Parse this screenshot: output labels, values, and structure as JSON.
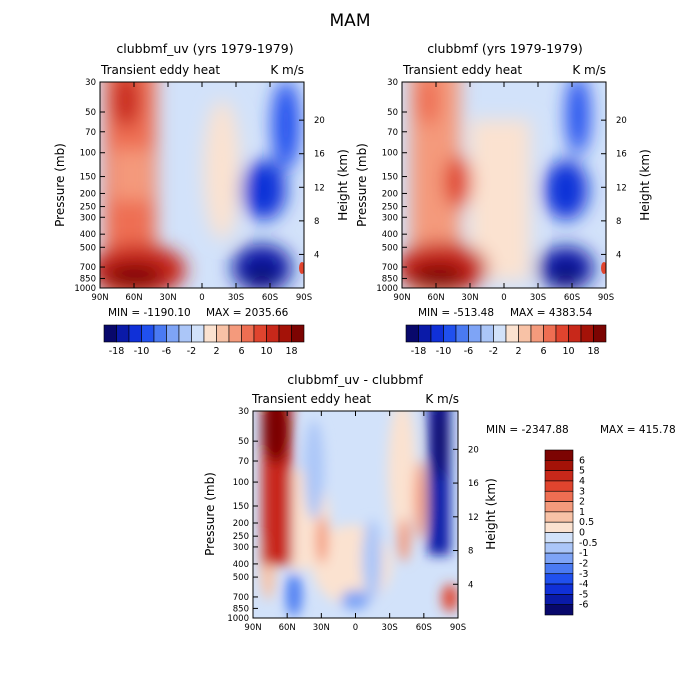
{
  "figure_title": "MAM",
  "chart_data": [
    {
      "type": "heatmap",
      "title": "clubbmf_uv (yrs 1979-1979)",
      "subtitle_left": "Transient eddy heat",
      "subtitle_right": "K m/s",
      "ylabel": "Pressure (mb)",
      "ylabel_right": "Height (km)",
      "x_ticks": [
        "90N",
        "60N",
        "30N",
        "0",
        "30S",
        "60S",
        "90S"
      ],
      "y_ticks": [
        "30",
        "50",
        "70",
        "100",
        "150",
        "200",
        "250",
        "300",
        "400",
        "500",
        "700",
        "850",
        "1000"
      ],
      "y2_ticks": [
        "20",
        "16",
        "12",
        "8",
        "4"
      ],
      "min_label": "MIN = -1190.10",
      "max_label": "MAX = 2035.66",
      "colorbar_labels": [
        "-18",
        "-10",
        "-6",
        "-2",
        "2",
        "6",
        "10",
        "18"
      ],
      "colorbar_levels": [
        -18,
        -14,
        -10,
        -8,
        -6,
        -4,
        -2,
        -1,
        1,
        2,
        4,
        6,
        8,
        10,
        14,
        18
      ],
      "colorbar_orientation": "horizontal"
    },
    {
      "type": "heatmap",
      "title": "clubbmf (yrs 1979-1979)",
      "subtitle_left": "Transient eddy heat",
      "subtitle_right": "K m/s",
      "ylabel": "Pressure (mb)",
      "ylabel_right": "Height (km)",
      "x_ticks": [
        "90N",
        "60N",
        "30N",
        "0",
        "30S",
        "60S",
        "90S"
      ],
      "y_ticks": [
        "30",
        "50",
        "70",
        "100",
        "150",
        "200",
        "250",
        "300",
        "400",
        "500",
        "700",
        "850",
        "1000"
      ],
      "y2_ticks": [
        "20",
        "16",
        "12",
        "8",
        "4"
      ],
      "min_label": "MIN = -513.48",
      "max_label": "MAX = 4383.54",
      "colorbar_labels": [
        "-18",
        "-10",
        "-6",
        "-2",
        "2",
        "6",
        "10",
        "18"
      ],
      "colorbar_levels": [
        -18,
        -14,
        -10,
        -8,
        -6,
        -4,
        -2,
        -1,
        1,
        2,
        4,
        6,
        8,
        10,
        14,
        18
      ],
      "colorbar_orientation": "horizontal"
    },
    {
      "type": "heatmap",
      "title": "clubbmf_uv - clubbmf",
      "subtitle_left": "Transient eddy heat",
      "subtitle_right": "K m/s",
      "ylabel": "Pressure (mb)",
      "ylabel_right": "Height (km)",
      "x_ticks": [
        "90N",
        "60N",
        "30N",
        "0",
        "30S",
        "60S",
        "90S"
      ],
      "y_ticks": [
        "30",
        "50",
        "70",
        "100",
        "150",
        "200",
        "250",
        "300",
        "400",
        "500",
        "700",
        "850",
        "1000"
      ],
      "y2_ticks": [
        "20",
        "16",
        "12",
        "8",
        "4"
      ],
      "min_label": "MIN = -2347.88",
      "max_label": "MAX = 415.78",
      "colorbar_labels": [
        "6",
        "5",
        "4",
        "3",
        "2",
        "1",
        "0.5",
        "0",
        "-0.5",
        "-1",
        "-2",
        "-3",
        "-4",
        "-5",
        "-6"
      ],
      "colorbar_levels": [
        6,
        5,
        4,
        3,
        2,
        1,
        0.5,
        0,
        -0.5,
        -1,
        -2,
        -3,
        -4,
        -5,
        -6
      ],
      "colorbar_orientation": "vertical"
    }
  ],
  "palette": [
    "#08086b",
    "#0a1aa8",
    "#1030d8",
    "#2050ee",
    "#4a7af2",
    "#7ea4f6",
    "#abc6f8",
    "#d2e2fa",
    "#fbe2d0",
    "#f8c2a6",
    "#f49a7c",
    "#ee6e52",
    "#e0442e",
    "#c8281a",
    "#a41208",
    "#7c0402"
  ]
}
